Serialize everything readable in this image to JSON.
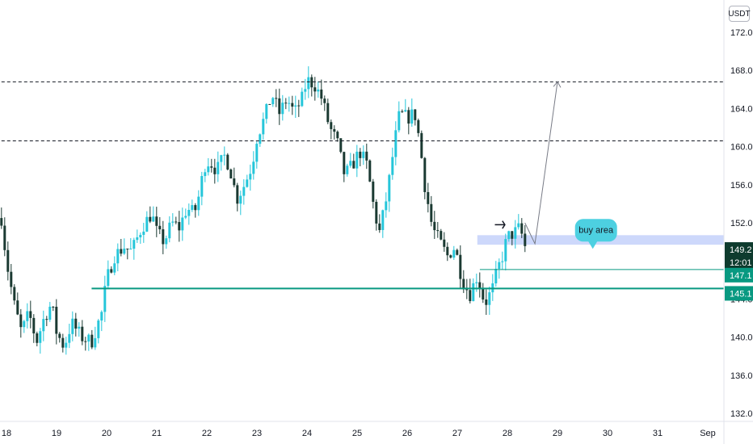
{
  "currency_label": "USDT",
  "annotation_label": "buy area",
  "price_badges": {
    "last_price": "149.2",
    "countdown": "12:01",
    "level_1": "147.1",
    "level_2": "145.1"
  },
  "colors": {
    "up_candle": "#26c6da",
    "down_candle": "#1b3a32",
    "level_line": "#089981",
    "buy_zone": "#c8d4fb",
    "callout": "#4dd0e1",
    "last_price_badge": "#0e3b2e"
  },
  "chart_data": {
    "type": "candlestick",
    "x_tick_labels": [
      "18",
      "19",
      "20",
      "21",
      "22",
      "23",
      "24",
      "25",
      "26",
      "27",
      "28",
      "29",
      "30",
      "31",
      "Sep"
    ],
    "y_tick_labels": [
      "132.0",
      "136.0",
      "140.0",
      "144.0",
      "148.0",
      "152.0",
      "156.0",
      "160.0",
      "164.0",
      "168.0",
      "172.0"
    ],
    "ylim": [
      131,
      174
    ],
    "xlim": [
      17.9,
      32.4
    ],
    "price_path": [
      [
        17.9,
        152.5
      ],
      [
        18.0,
        148.0
      ],
      [
        18.15,
        143.5
      ],
      [
        18.3,
        140.5
      ],
      [
        18.45,
        142.5
      ],
      [
        18.6,
        139.5
      ],
      [
        18.75,
        142.0
      ],
      [
        18.9,
        143.5
      ],
      [
        19.0,
        140.5
      ],
      [
        19.15,
        139.0
      ],
      [
        19.3,
        141.5
      ],
      [
        19.5,
        140.0
      ],
      [
        19.7,
        139.5
      ],
      [
        19.9,
        142.5
      ],
      [
        20.0,
        146.0
      ],
      [
        20.15,
        148.5
      ],
      [
        20.35,
        149.5
      ],
      [
        20.5,
        149.0
      ],
      [
        20.7,
        151.5
      ],
      [
        20.9,
        153.0
      ],
      [
        21.0,
        151.0
      ],
      [
        21.15,
        150.0
      ],
      [
        21.3,
        152.0
      ],
      [
        21.45,
        151.5
      ],
      [
        21.6,
        153.5
      ],
      [
        21.75,
        153.0
      ],
      [
        21.85,
        155.0
      ],
      [
        21.95,
        158.0
      ],
      [
        22.05,
        158.5
      ],
      [
        22.2,
        157.5
      ],
      [
        22.35,
        159.0
      ],
      [
        22.45,
        158.0
      ],
      [
        22.6,
        154.5
      ],
      [
        22.75,
        156.0
      ],
      [
        22.9,
        158.0
      ],
      [
        23.0,
        161.0
      ],
      [
        23.15,
        163.0
      ],
      [
        23.3,
        165.5
      ],
      [
        23.45,
        163.5
      ],
      [
        23.6,
        165.0
      ],
      [
        23.75,
        163.5
      ],
      [
        23.9,
        165.0
      ],
      [
        24.0,
        167.0
      ],
      [
        24.15,
        166.5
      ],
      [
        24.3,
        165.0
      ],
      [
        24.45,
        162.0
      ],
      [
        24.6,
        160.5
      ],
      [
        24.75,
        157.0
      ],
      [
        24.9,
        158.0
      ],
      [
        25.05,
        159.5
      ],
      [
        25.2,
        158.0
      ],
      [
        25.35,
        153.0
      ],
      [
        25.45,
        151.0
      ],
      [
        25.6,
        155.0
      ],
      [
        25.75,
        160.5
      ],
      [
        25.85,
        163.5
      ],
      [
        26.0,
        163.0
      ],
      [
        26.15,
        163.5
      ],
      [
        26.25,
        160.5
      ],
      [
        26.35,
        156.0
      ],
      [
        26.5,
        151.5
      ],
      [
        26.65,
        150.0
      ],
      [
        26.8,
        148.5
      ],
      [
        26.95,
        149.5
      ],
      [
        27.1,
        146.0
      ],
      [
        27.25,
        144.5
      ],
      [
        27.4,
        146.5
      ],
      [
        27.55,
        143.5
      ],
      [
        27.7,
        145.0
      ],
      [
        27.8,
        147.0
      ],
      [
        27.9,
        148.5
      ],
      [
        28.0,
        150.5
      ],
      [
        28.15,
        151.0
      ],
      [
        28.25,
        151.5
      ],
      [
        28.35,
        149.5
      ],
      [
        28.4,
        149.2
      ]
    ],
    "horizontal_levels": [
      {
        "price": 166.8,
        "style": "dashed",
        "from_x": 17.9
      },
      {
        "price": 160.6,
        "style": "dashed",
        "from_x": 17.9
      },
      {
        "price": 147.1,
        "style": "solid",
        "from_x": 27.45
      },
      {
        "price": 145.1,
        "style": "solid",
        "from_x": 19.7
      }
    ],
    "zones": [
      {
        "label": "buy area",
        "from_x": 27.4,
        "to_x": 32.4,
        "y_low": 149.7,
        "y_high": 150.7
      }
    ],
    "projection_arrow": [
      [
        28.35,
        152.0
      ],
      [
        28.55,
        149.8
      ],
      [
        29.0,
        166.8
      ]
    ]
  }
}
